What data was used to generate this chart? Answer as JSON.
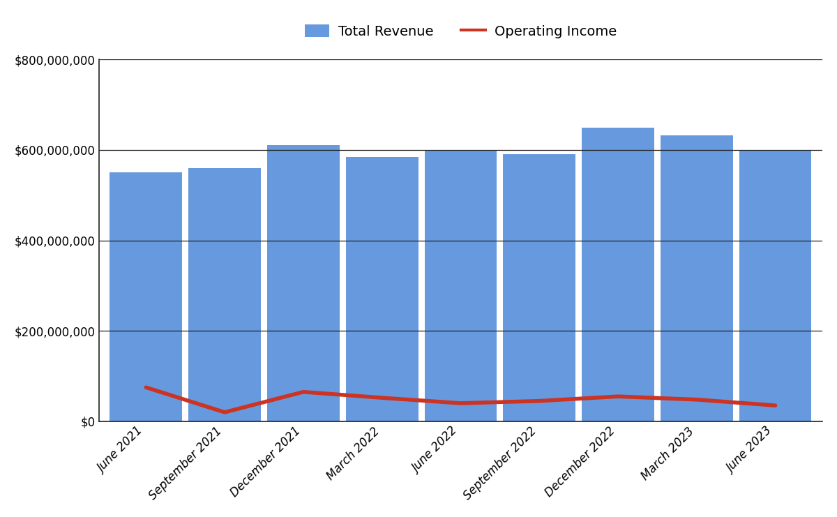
{
  "categories": [
    "June 2021",
    "September 2021",
    "December 2021",
    "March 2022",
    "June 2022",
    "September 2022",
    "December 2022",
    "March 2023",
    "June 2023"
  ],
  "total_revenue": [
    550000000,
    560000000,
    610000000,
    585000000,
    600000000,
    590000000,
    650000000,
    632000000,
    600000000
  ],
  "operating_income": [
    75000000,
    20000000,
    65000000,
    52000000,
    40000000,
    45000000,
    55000000,
    48000000,
    35000000
  ],
  "bar_color": "#6699DD",
  "line_color": "#CC3322",
  "ylim": [
    0,
    800000000
  ],
  "yticks": [
    0,
    200000000,
    400000000,
    600000000,
    800000000
  ],
  "legend_labels": [
    "Total Revenue",
    "Operating Income"
  ],
  "background_color": "#FFFFFF",
  "grid_color": "#222222"
}
